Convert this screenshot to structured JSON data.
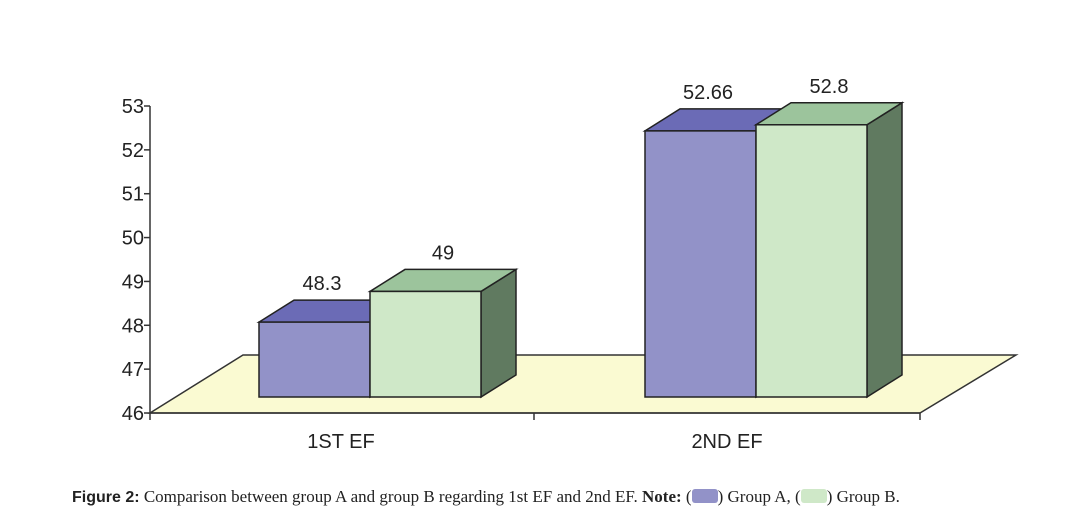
{
  "chart_data": {
    "type": "bar",
    "categories": [
      "1ST EF",
      "2ND EF"
    ],
    "series": [
      {
        "name": "Group A",
        "values": [
          48.3,
          52.66
        ]
      },
      {
        "name": "Group B",
        "values": [
          49,
          52.8
        ]
      }
    ],
    "value_labels": [
      [
        "48.3",
        "52.66"
      ],
      [
        "49",
        "52.8"
      ]
    ],
    "ylim": [
      46,
      53
    ],
    "yticks": [
      "46",
      "47",
      "48",
      "49",
      "50",
      "51",
      "52",
      "53"
    ],
    "grid": false,
    "legend": "none",
    "style": "3d",
    "colors": {
      "group_a_front": "#9292c8",
      "group_a_top": "#6b6bb6",
      "group_b_front": "#cfe8c8",
      "group_b_top": "#9cc49c",
      "side": "#607a60",
      "floor": "#fafad2"
    }
  },
  "caption": {
    "figure_label": "Figure 2:",
    "text": " Comparison between group A and group B regarding 1st EF and 2nd EF. ",
    "note_label": "Note:",
    "open_a": " (",
    "group_a": ") Group A, (",
    "group_b": ") Group B."
  }
}
